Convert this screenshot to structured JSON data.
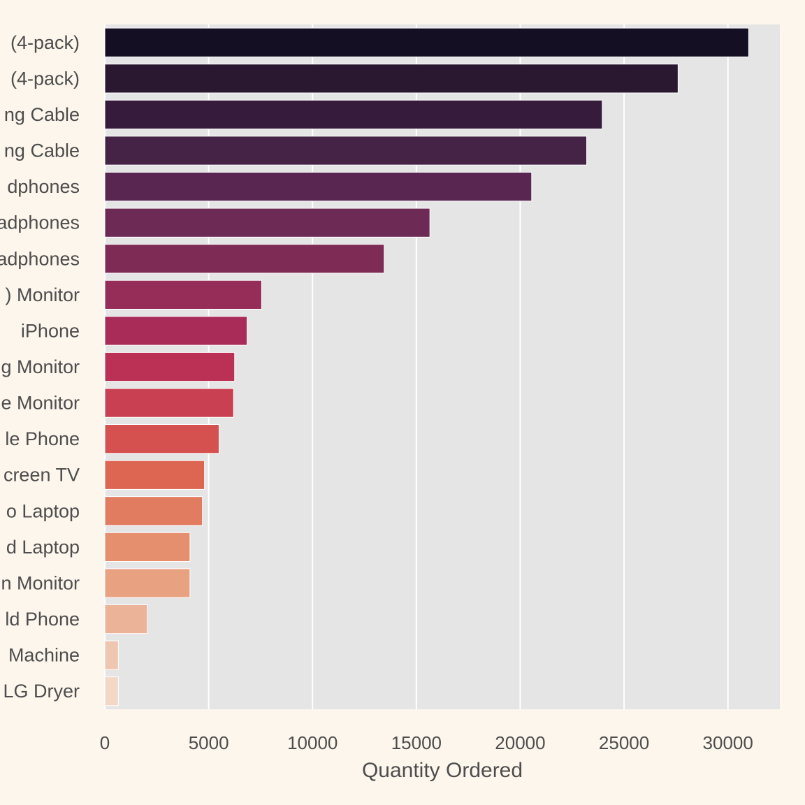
{
  "chart_data": {
    "type": "bar",
    "orientation": "horizontal",
    "title": "",
    "xlabel": "Quantity Ordered",
    "ylabel": "",
    "xlim": [
      0,
      32500
    ],
    "xticks": [
      0,
      5000,
      10000,
      15000,
      20000,
      25000,
      30000
    ],
    "grid": true,
    "categories": [
      "(4-pack)",
      "(4-pack)",
      "ng Cable",
      "ng Cable",
      "dphones",
      "adphones",
      "adphones",
      ") Monitor",
      "iPhone",
      "g Monitor",
      "e Monitor",
      "le Phone",
      "creen TV",
      "o Laptop",
      "d Laptop",
      "n Monitor",
      "ld Phone",
      "Machine",
      "LG Dryer"
    ],
    "values": [
      31000,
      27600,
      23950,
      23200,
      20550,
      15650,
      13450,
      7550,
      6850,
      6250,
      6200,
      5500,
      4800,
      4700,
      4100,
      4100,
      2050,
      650,
      650
    ],
    "colors": [
      "#140f22",
      "#2a1730",
      "#371b3c",
      "#452347",
      "#582650",
      "#6c2a55",
      "#7e2b56",
      "#962c58",
      "#a92b58",
      "#bb3055",
      "#c84051",
      "#d4514f",
      "#dc6652",
      "#e17c61",
      "#e58f6f",
      "#e8a282",
      "#ebb498",
      "#efc6b0",
      "#f3d8c8"
    ]
  }
}
